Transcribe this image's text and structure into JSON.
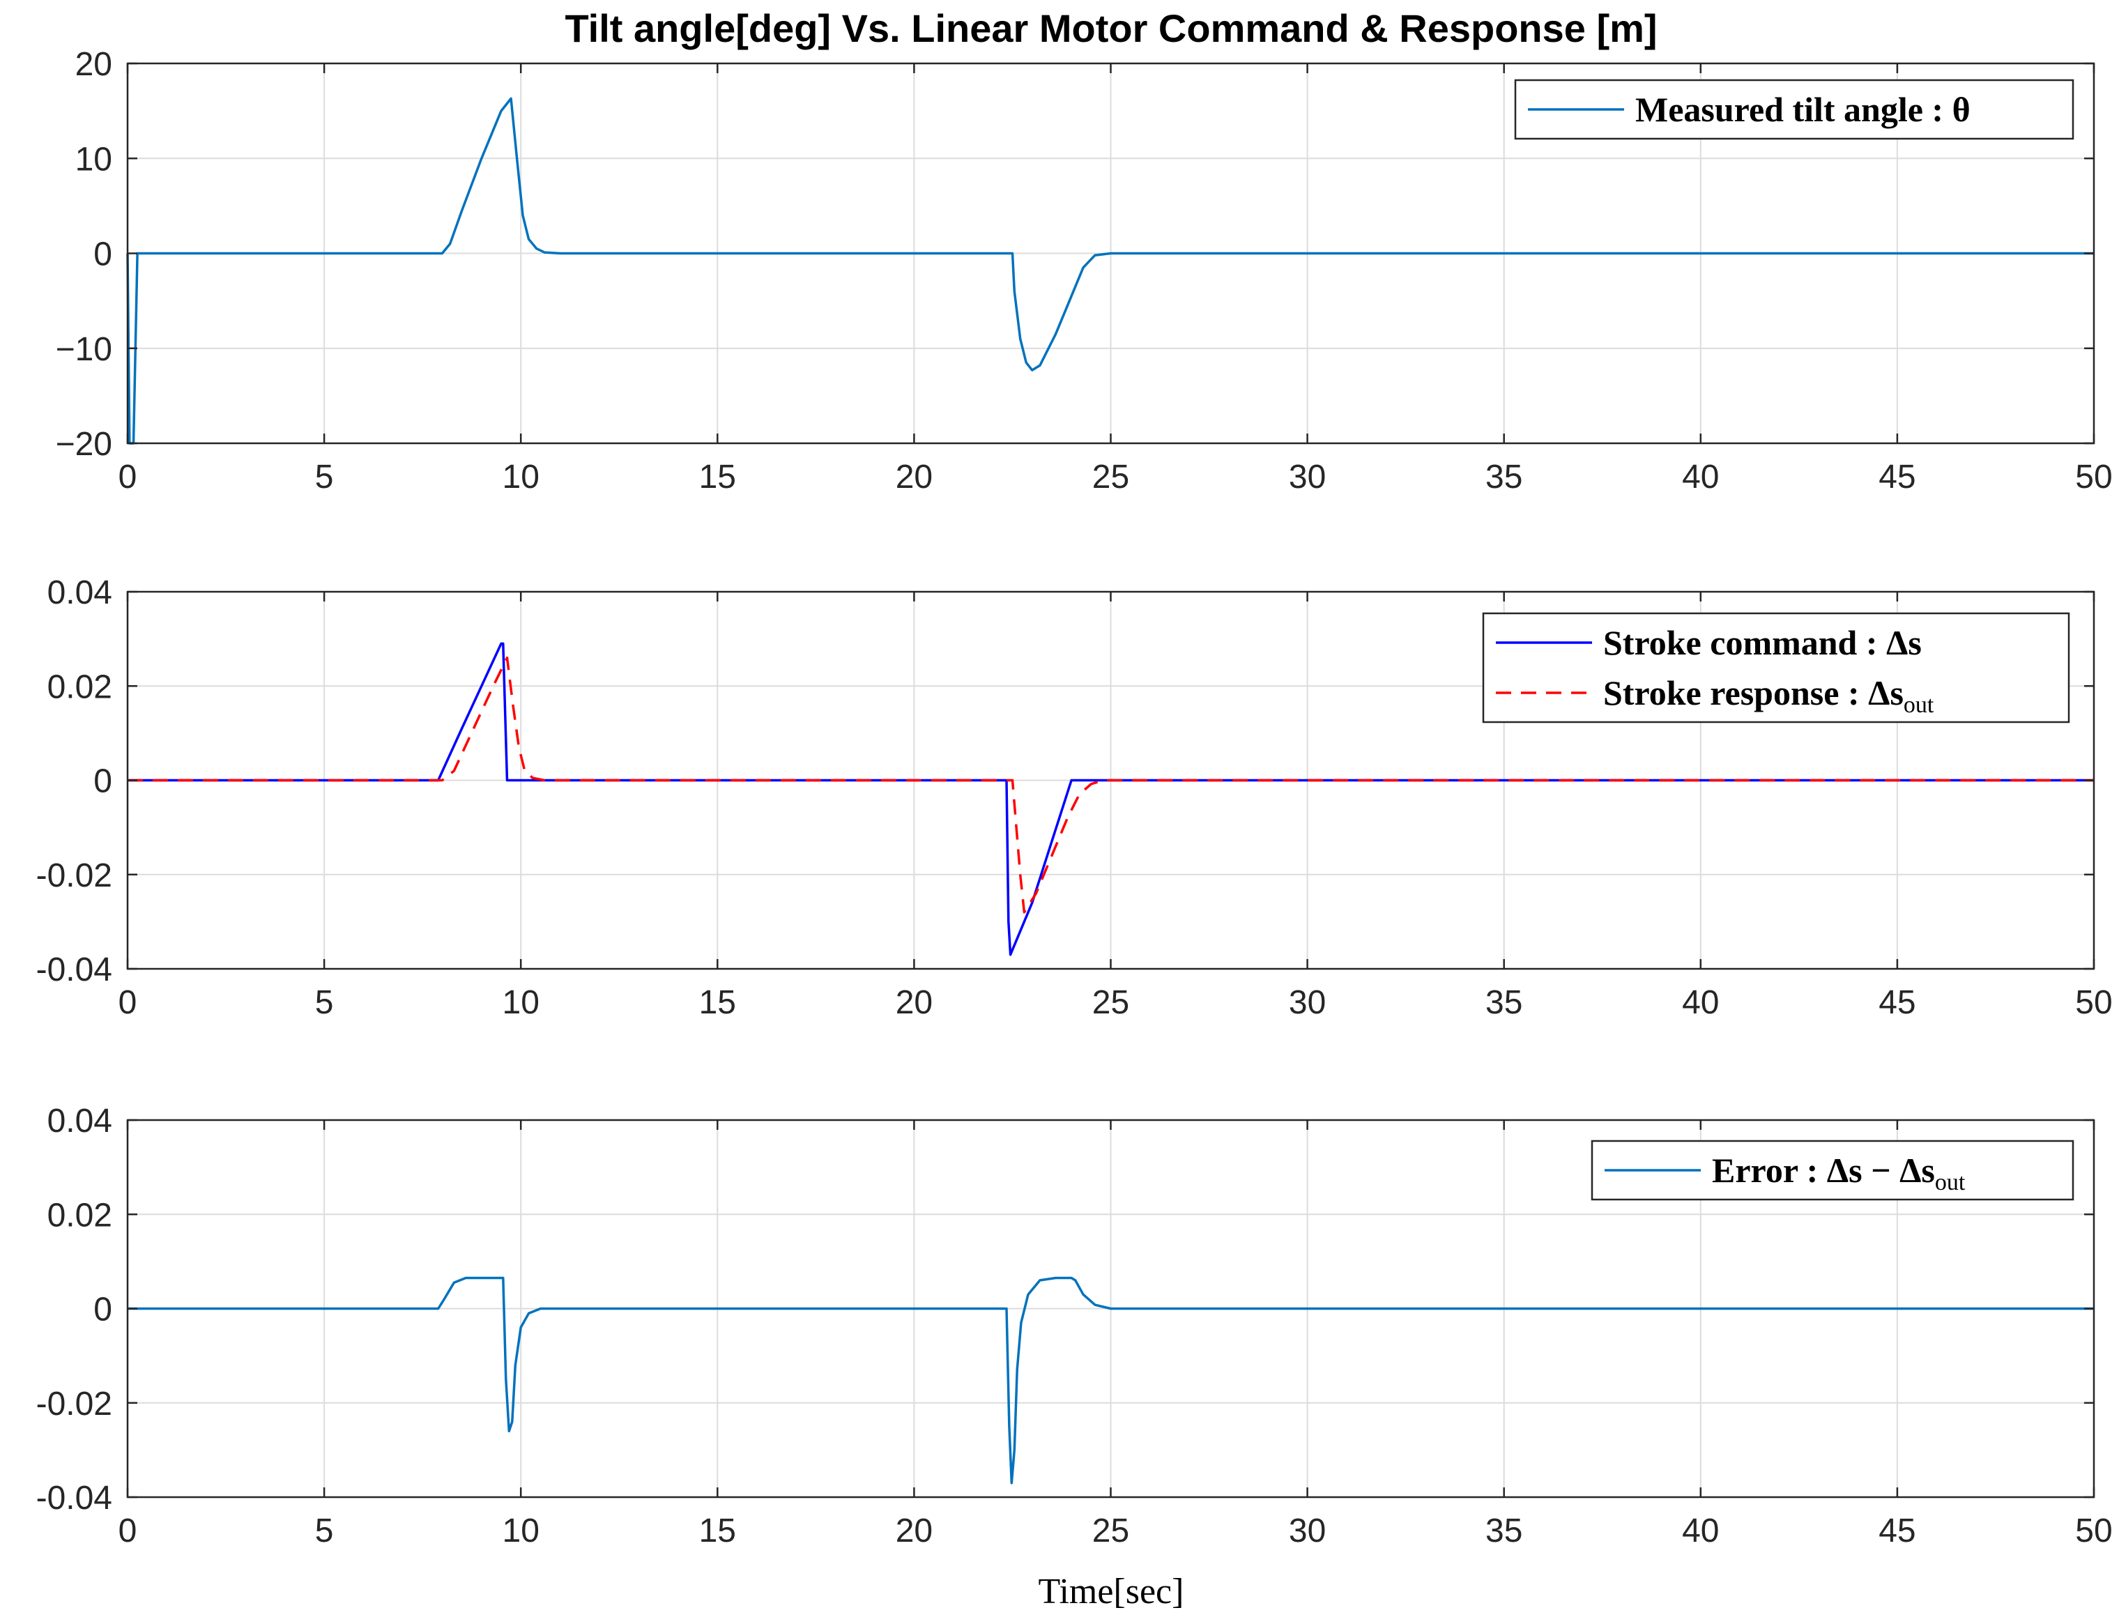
{
  "figure": {
    "title": "Tilt angle[deg] Vs. Linear Motor Command & Response [m]",
    "xlabel": "Time[sec]"
  },
  "chart_data": [
    {
      "type": "line",
      "title": "Tilt angle[deg] Vs. Linear Motor Command & Response [m]",
      "xlabel": "",
      "ylabel": "",
      "xlim": [
        0,
        50
      ],
      "ylim": [
        -20,
        20
      ],
      "xticks": [
        0,
        5,
        10,
        15,
        20,
        25,
        30,
        35,
        40,
        45,
        50
      ],
      "xtick_labels": [
        "0",
        "5",
        "10",
        "15",
        "20",
        "25",
        "30",
        "35",
        "40",
        "45",
        "50"
      ],
      "yticks": [
        -20,
        -10,
        0,
        10,
        20
      ],
      "ytick_labels": [
        "−20",
        "−10",
        "0",
        "10",
        "20"
      ],
      "grid": true,
      "legend_position": "top-right",
      "legend_labels": [
        "Measured tilt angle : θ"
      ],
      "series": [
        {
          "name": "Measured tilt angle : θ",
          "color": "#0072BD",
          "dash": "solid",
          "x": [
            0,
            0.05,
            0.15,
            0.25,
            0.5,
            8.0,
            8.2,
            8.5,
            9.0,
            9.5,
            9.75,
            9.9,
            10.05,
            10.2,
            10.4,
            10.6,
            11,
            22.5,
            22.55,
            22.7,
            22.85,
            23.0,
            23.2,
            23.6,
            24.0,
            24.3,
            24.6,
            25,
            50
          ],
          "y": [
            0,
            -20,
            -20,
            0,
            0,
            0,
            1,
            4.5,
            10,
            15,
            16.3,
            10,
            4,
            1.5,
            0.5,
            0.1,
            0,
            0,
            -4,
            -9,
            -11.5,
            -12.3,
            -11.8,
            -8.5,
            -4.5,
            -1.5,
            -0.2,
            0,
            0
          ]
        }
      ]
    },
    {
      "type": "line",
      "xlabel": "",
      "ylabel": "",
      "xlim": [
        0,
        50
      ],
      "ylim": [
        -0.04,
        0.04
      ],
      "xticks": [
        0,
        5,
        10,
        15,
        20,
        25,
        30,
        35,
        40,
        45,
        50
      ],
      "xtick_labels": [
        "0",
        "5",
        "10",
        "15",
        "20",
        "25",
        "30",
        "35",
        "40",
        "45",
        "50"
      ],
      "yticks": [
        -0.04,
        -0.02,
        0,
        0.02,
        0.04
      ],
      "ytick_labels": [
        "-0.04",
        "-0.02",
        "0",
        "0.02",
        "0.04"
      ],
      "grid": true,
      "legend_position": "top-right",
      "legend_labels": [
        "Stroke command :  Δs",
        "Stroke response :  Δs_out"
      ],
      "series": [
        {
          "name": "Stroke command :  Δs",
          "color": "#0000FF",
          "dash": "solid",
          "x": [
            0,
            7.9,
            8.5,
            9.0,
            9.5,
            9.55,
            9.65,
            22.35,
            22.4,
            22.45,
            23.0,
            23.5,
            24.0,
            24.1,
            50
          ],
          "y": [
            0,
            0,
            0.011,
            0.02,
            0.029,
            0.029,
            0,
            0,
            -0.03,
            -0.037,
            -0.026,
            -0.013,
            0,
            0,
            0
          ]
        },
        {
          "name": "Stroke response :  Δs_out",
          "color": "#FF0000",
          "dash": "dashed",
          "x": [
            0,
            8.0,
            8.3,
            8.8,
            9.3,
            9.65,
            9.8,
            9.95,
            10.1,
            10.3,
            10.6,
            22.5,
            22.7,
            22.8,
            23.1,
            23.5,
            23.9,
            24.2,
            24.5,
            24.8,
            50
          ],
          "y": [
            0,
            0,
            0.002,
            0.011,
            0.02,
            0.026,
            0.016,
            0.007,
            0.002,
            0.0005,
            0,
            0,
            -0.02,
            -0.028,
            -0.024,
            -0.016,
            -0.008,
            -0.003,
            -0.0008,
            0,
            0
          ]
        }
      ]
    },
    {
      "type": "line",
      "xlabel": "Time[sec]",
      "ylabel": "",
      "xlim": [
        0,
        50
      ],
      "ylim": [
        -0.04,
        0.04
      ],
      "xticks": [
        0,
        5,
        10,
        15,
        20,
        25,
        30,
        35,
        40,
        45,
        50
      ],
      "xtick_labels": [
        "0",
        "5",
        "10",
        "15",
        "20",
        "25",
        "30",
        "35",
        "40",
        "45",
        "50"
      ],
      "yticks": [
        -0.04,
        -0.02,
        0,
        0.02,
        0.04
      ],
      "ytick_labels": [
        "-0.04",
        "-0.02",
        "0",
        "0.02",
        "0.04"
      ],
      "grid": true,
      "legend_position": "top-right",
      "legend_labels": [
        "Error : Δs − Δs_out"
      ],
      "series": [
        {
          "name": "Error : Δs − Δs_out",
          "color": "#0072BD",
          "dash": "solid",
          "x": [
            0,
            7.9,
            8.05,
            8.3,
            8.6,
            9.0,
            9.55,
            9.62,
            9.7,
            9.78,
            9.86,
            10.0,
            10.2,
            10.5,
            11,
            22.35,
            22.42,
            22.48,
            22.55,
            22.62,
            22.72,
            22.9,
            23.2,
            23.6,
            24.0,
            24.1,
            24.3,
            24.6,
            25,
            50
          ],
          "y": [
            0,
            0,
            0.002,
            0.0055,
            0.0065,
            0.0065,
            0.0065,
            -0.015,
            -0.026,
            -0.024,
            -0.012,
            -0.004,
            -0.001,
            0,
            0,
            0,
            -0.025,
            -0.037,
            -0.03,
            -0.013,
            -0.003,
            0.003,
            0.006,
            0.0065,
            0.0065,
            0.006,
            0.003,
            0.0008,
            0,
            0
          ]
        }
      ]
    }
  ]
}
